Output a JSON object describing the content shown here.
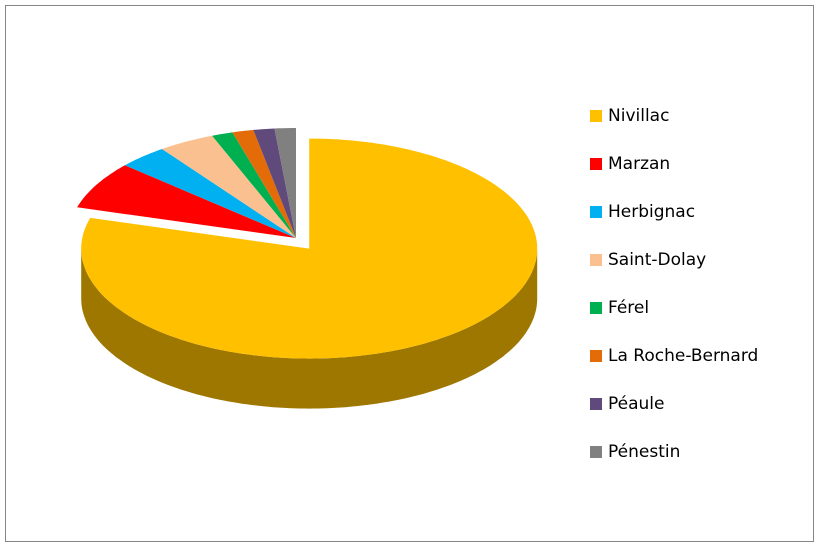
{
  "chart_data": {
    "type": "pie3d",
    "categories": [
      "Nivillac",
      "Marzan",
      "Herbignac",
      "Saint-Dolay",
      "Férel",
      "La Roche-Bernard",
      "Péaule",
      "Pénestin"
    ],
    "values": [
      79.5,
      7,
      3.5,
      4,
      1.5,
      1.5,
      1.5,
      1.5
    ],
    "colors": [
      "#FFC000",
      "#FF0000",
      "#00B0F0",
      "#FAC090",
      "#00B050",
      "#E36C09",
      "#604A7B",
      "#808080"
    ],
    "legend": "right"
  }
}
